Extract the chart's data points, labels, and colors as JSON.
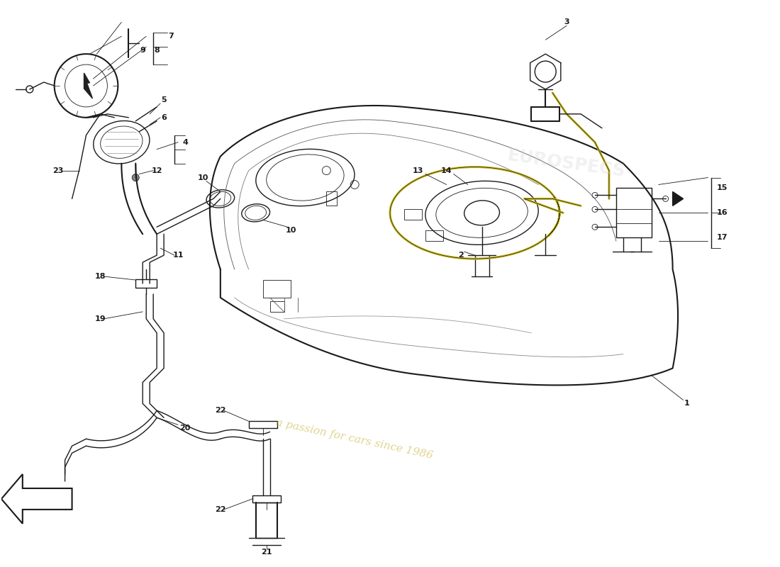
{
  "background_color": "#ffffff",
  "line_color": "#1a1a1a",
  "yellow_line_color": "#c8b820",
  "watermark_color": "#c8b030",
  "watermark_text": "a passion for cars since 1986",
  "fig_width": 11.0,
  "fig_height": 8.0,
  "dpi": 100
}
